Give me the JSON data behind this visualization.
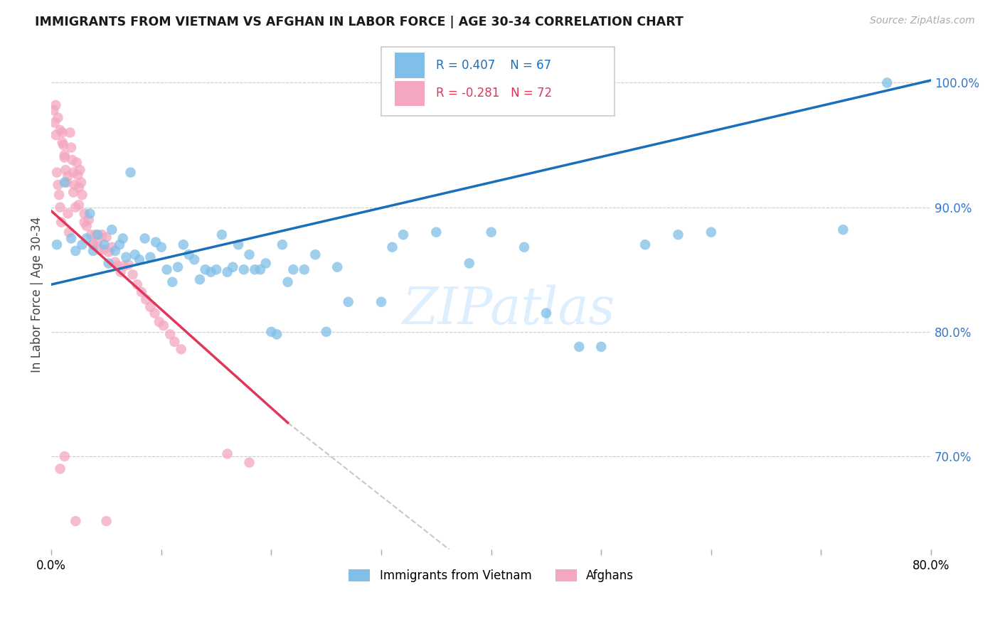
{
  "title": "IMMIGRANTS FROM VIETNAM VS AFGHAN IN LABOR FORCE | AGE 30-34 CORRELATION CHART",
  "source": "Source: ZipAtlas.com",
  "ylabel": "In Labor Force | Age 30-34",
  "x_min": 0.0,
  "x_max": 0.8,
  "y_min": 0.625,
  "y_max": 1.035,
  "y_ticks": [
    0.7,
    0.8,
    0.9,
    1.0
  ],
  "y_tick_labels": [
    "70.0%",
    "80.0%",
    "90.0%",
    "100.0%"
  ],
  "vietnam_color": "#7fbfe8",
  "afghan_color": "#f4a7be",
  "vietnam_line_color": "#1a6fba",
  "afghan_line_color": "#e0365a",
  "afghan_line_dash_color": "#c8c8c8",
  "grid_color": "#cccccc",
  "title_color": "#1a1a1a",
  "right_tick_color": "#3377cc",
  "watermark_color": "#ddeeff",
  "vietnam_regline": [
    0.0,
    0.838,
    0.8,
    1.002
  ],
  "afghan_regline_solid": [
    0.0,
    0.897,
    0.215,
    0.727
  ],
  "afghan_regline_dash": [
    0.215,
    0.727,
    0.6,
    0.46
  ],
  "vietnam_x": [
    0.005,
    0.012,
    0.018,
    0.022,
    0.028,
    0.032,
    0.035,
    0.038,
    0.042,
    0.048,
    0.052,
    0.055,
    0.058,
    0.062,
    0.065,
    0.068,
    0.072,
    0.076,
    0.08,
    0.085,
    0.09,
    0.095,
    0.1,
    0.105,
    0.11,
    0.115,
    0.12,
    0.125,
    0.13,
    0.135,
    0.14,
    0.145,
    0.15,
    0.155,
    0.16,
    0.165,
    0.17,
    0.175,
    0.18,
    0.185,
    0.19,
    0.195,
    0.2,
    0.205,
    0.21,
    0.215,
    0.22,
    0.23,
    0.24,
    0.25,
    0.26,
    0.27,
    0.3,
    0.31,
    0.32,
    0.35,
    0.38,
    0.4,
    0.43,
    0.45,
    0.48,
    0.5,
    0.54,
    0.57,
    0.6,
    0.72,
    0.76
  ],
  "vietnam_y": [
    0.87,
    0.92,
    0.875,
    0.865,
    0.87,
    0.875,
    0.895,
    0.865,
    0.878,
    0.87,
    0.855,
    0.882,
    0.865,
    0.87,
    0.875,
    0.86,
    0.928,
    0.862,
    0.858,
    0.875,
    0.86,
    0.872,
    0.868,
    0.85,
    0.84,
    0.852,
    0.87,
    0.862,
    0.858,
    0.842,
    0.85,
    0.848,
    0.85,
    0.878,
    0.848,
    0.852,
    0.87,
    0.85,
    0.862,
    0.85,
    0.85,
    0.855,
    0.8,
    0.798,
    0.87,
    0.84,
    0.85,
    0.85,
    0.862,
    0.8,
    0.852,
    0.824,
    0.824,
    0.868,
    0.878,
    0.88,
    0.855,
    0.88,
    0.868,
    0.815,
    0.788,
    0.788,
    0.87,
    0.878,
    0.88,
    0.882,
    1.0
  ],
  "afghan_x": [
    0.002,
    0.003,
    0.004,
    0.005,
    0.006,
    0.007,
    0.008,
    0.009,
    0.01,
    0.011,
    0.012,
    0.013,
    0.014,
    0.015,
    0.016,
    0.017,
    0.018,
    0.019,
    0.02,
    0.021,
    0.022,
    0.023,
    0.024,
    0.025,
    0.026,
    0.027,
    0.028,
    0.03,
    0.032,
    0.034,
    0.036,
    0.038,
    0.04,
    0.042,
    0.044,
    0.046,
    0.048,
    0.05,
    0.052,
    0.055,
    0.058,
    0.06,
    0.063,
    0.066,
    0.07,
    0.074,
    0.078,
    0.082,
    0.086,
    0.09,
    0.094,
    0.098,
    0.102,
    0.108,
    0.112,
    0.118,
    0.004,
    0.006,
    0.008,
    0.01,
    0.012,
    0.015,
    0.02,
    0.025,
    0.03,
    0.038,
    0.008,
    0.012,
    0.16,
    0.18,
    0.022,
    0.05
  ],
  "afghan_y": [
    0.978,
    0.968,
    0.958,
    0.928,
    0.918,
    0.91,
    0.9,
    0.888,
    0.96,
    0.95,
    0.94,
    0.93,
    0.92,
    0.895,
    0.88,
    0.96,
    0.948,
    0.938,
    0.928,
    0.918,
    0.9,
    0.936,
    0.926,
    0.916,
    0.93,
    0.92,
    0.91,
    0.895,
    0.885,
    0.89,
    0.878,
    0.87,
    0.878,
    0.872,
    0.866,
    0.878,
    0.866,
    0.876,
    0.864,
    0.868,
    0.856,
    0.853,
    0.848,
    0.853,
    0.854,
    0.846,
    0.838,
    0.832,
    0.826,
    0.82,
    0.815,
    0.808,
    0.805,
    0.798,
    0.792,
    0.786,
    0.982,
    0.972,
    0.962,
    0.952,
    0.942,
    0.925,
    0.912,
    0.902,
    0.888,
    0.87,
    0.69,
    0.7,
    0.702,
    0.695,
    0.648,
    0.648
  ]
}
